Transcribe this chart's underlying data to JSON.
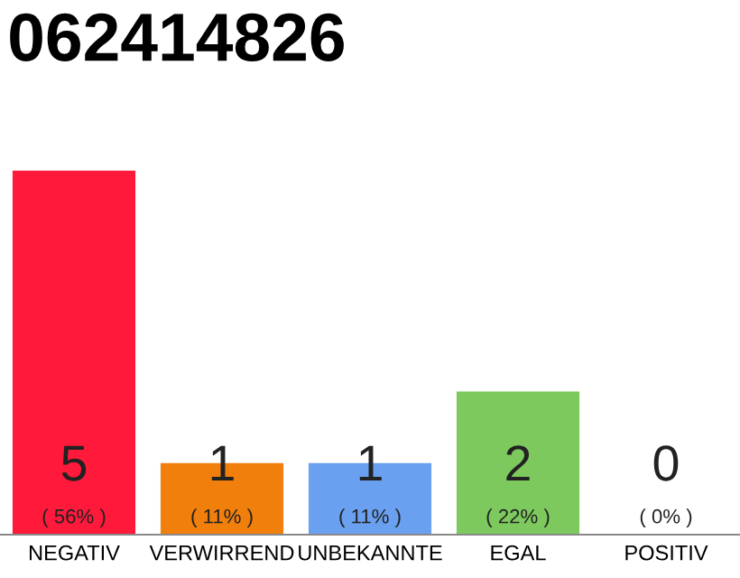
{
  "chart_data": {
    "type": "bar",
    "title": "062414826",
    "categories": [
      "NEGATIV",
      "VERWIRREND",
      "UNBEKANNTE",
      "EGAL",
      "POSITIV"
    ],
    "values": [
      56,
      11,
      11,
      22,
      0
    ],
    "colors": [
      "#ff1a3c",
      "#f07f0c",
      "#6aa0f0",
      "#7dc95e",
      "#aaaaaa"
    ],
    "value_labels": [
      "( 56% )",
      "( 11% )",
      "( 11% )",
      "( 22% )",
      "( 0% )"
    ],
    "annotations": [
      "5",
      "1",
      "1",
      "2",
      "0"
    ],
    "tick_labels": "x"
  }
}
